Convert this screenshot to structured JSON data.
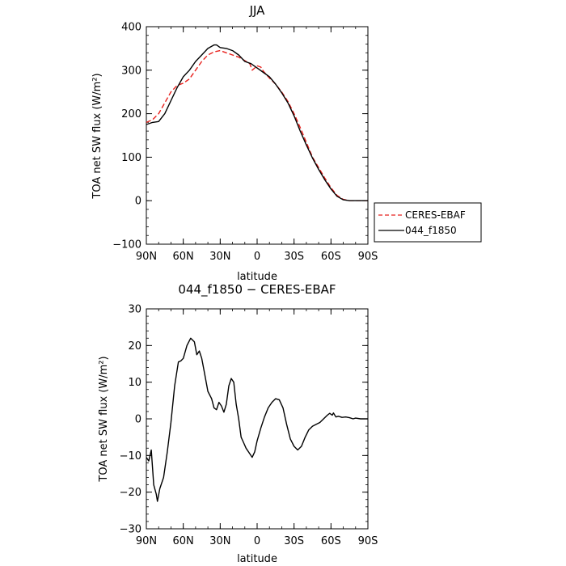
{
  "chart_data": [
    {
      "type": "line",
      "title": "JJA",
      "xlabel": "latitude",
      "ylabel": "TOA net SW flux (W/m²)",
      "xlim": [
        90,
        -90
      ],
      "ylim": [
        -100,
        400
      ],
      "x_ticks": [
        90,
        60,
        30,
        0,
        -30,
        -60,
        -90
      ],
      "x_tick_labels": [
        "90N",
        "60N",
        "30N",
        "0",
        "30S",
        "60S",
        "90S"
      ],
      "y_ticks": [
        -100,
        0,
        100,
        200,
        300,
        400
      ],
      "y_tick_labels": [
        "−100",
        "0",
        "100",
        "200",
        "300",
        "400"
      ],
      "legend": {
        "position": "right",
        "entries": [
          "CERES-EBAF",
          "044_f1850"
        ]
      },
      "series": [
        {
          "name": "CERES-EBAF",
          "color": "#e8211d",
          "dash": "dashed",
          "points": [
            [
              90,
              180
            ],
            [
              85,
              186
            ],
            [
              80,
              200
            ],
            [
              75,
              225
            ],
            [
              70,
              250
            ],
            [
              65,
              265
            ],
            [
              60,
              270
            ],
            [
              55,
              280
            ],
            [
              50,
              300
            ],
            [
              45,
              320
            ],
            [
              40,
              335
            ],
            [
              35,
              342
            ],
            [
              30,
              345
            ],
            [
              25,
              340
            ],
            [
              20,
              335
            ],
            [
              15,
              330
            ],
            [
              10,
              322
            ],
            [
              6,
              315
            ],
            [
              4,
              300
            ],
            [
              2,
              305
            ],
            [
              0,
              310
            ],
            [
              -3,
              307
            ],
            [
              -5,
              298
            ],
            [
              -10,
              282
            ],
            [
              -15,
              268
            ],
            [
              -20,
              250
            ],
            [
              -25,
              228
            ],
            [
              -30,
              200
            ],
            [
              -35,
              168
            ],
            [
              -40,
              134
            ],
            [
              -45,
              100
            ],
            [
              -50,
              76
            ],
            [
              -55,
              52
            ],
            [
              -60,
              30
            ],
            [
              -65,
              12
            ],
            [
              -70,
              3
            ],
            [
              -75,
              0
            ],
            [
              -80,
              0
            ],
            [
              -85,
              0
            ],
            [
              -90,
              0
            ]
          ]
        },
        {
          "name": "044_f1850",
          "color": "#000000",
          "dash": "solid",
          "points": [
            [
              90,
              175
            ],
            [
              85,
              180
            ],
            [
              80,
              182
            ],
            [
              75,
              200
            ],
            [
              70,
              230
            ],
            [
              65,
              260
            ],
            [
              60,
              285
            ],
            [
              55,
              300
            ],
            [
              50,
              320
            ],
            [
              45,
              335
            ],
            [
              40,
              350
            ],
            [
              35,
              358
            ],
            [
              33,
              358
            ],
            [
              30,
              352
            ],
            [
              25,
              350
            ],
            [
              20,
              345
            ],
            [
              15,
              335
            ],
            [
              10,
              320
            ],
            [
              5,
              315
            ],
            [
              0,
              305
            ],
            [
              -5,
              295
            ],
            [
              -10,
              285
            ],
            [
              -15,
              268
            ],
            [
              -20,
              248
            ],
            [
              -25,
              225
            ],
            [
              -30,
              195
            ],
            [
              -35,
              160
            ],
            [
              -40,
              128
            ],
            [
              -45,
              98
            ],
            [
              -50,
              72
            ],
            [
              -55,
              48
            ],
            [
              -60,
              27
            ],
            [
              -65,
              10
            ],
            [
              -70,
              2
            ],
            [
              -75,
              0
            ],
            [
              -80,
              0
            ],
            [
              -85,
              0
            ],
            [
              -90,
              0
            ]
          ]
        }
      ]
    },
    {
      "type": "line",
      "title": "044_f1850 − CERES-EBAF",
      "xlabel": "latitude",
      "ylabel": "TOA net SW flux (W/m²)",
      "xlim": [
        90,
        -90
      ],
      "ylim": [
        -30,
        30
      ],
      "x_ticks": [
        90,
        60,
        30,
        0,
        -30,
        -60,
        -90
      ],
      "x_tick_labels": [
        "90N",
        "60N",
        "30N",
        "0",
        "30S",
        "60S",
        "90S"
      ],
      "y_ticks": [
        -30,
        -20,
        -10,
        0,
        10,
        20,
        30
      ],
      "y_tick_labels": [
        "−30",
        "−20",
        "−10",
        "0",
        "10",
        "20",
        "30"
      ],
      "series": [
        {
          "color": "#000000",
          "dash": "solid",
          "points": [
            [
              90,
              -10.5
            ],
            [
              88,
              -11.5
            ],
            [
              86,
              -8.5
            ],
            [
              84,
              -18
            ],
            [
              82,
              -20.5
            ],
            [
              81,
              -22.5
            ],
            [
              79,
              -19
            ],
            [
              76,
              -16
            ],
            [
              73,
              -9
            ],
            [
              70,
              -1
            ],
            [
              67,
              9
            ],
            [
              64,
              15.5
            ],
            [
              62,
              15.8
            ],
            [
              60,
              16.5
            ],
            [
              57,
              20
            ],
            [
              54,
              22
            ],
            [
              51,
              21
            ],
            [
              49,
              17.5
            ],
            [
              47,
              18.5
            ],
            [
              45,
              16.5
            ],
            [
              43,
              13
            ],
            [
              40,
              7.5
            ],
            [
              37,
              5.5
            ],
            [
              35,
              3
            ],
            [
              33,
              2.5
            ],
            [
              31,
              4.5
            ],
            [
              29,
              3.5
            ],
            [
              27,
              1.8
            ],
            [
              25,
              4
            ],
            [
              23,
              9
            ],
            [
              21,
              11
            ],
            [
              19,
              10
            ],
            [
              17,
              4
            ],
            [
              15,
              0
            ],
            [
              13,
              -5
            ],
            [
              11,
              -6.5
            ],
            [
              9,
              -8
            ],
            [
              6,
              -9.5
            ],
            [
              4,
              -10.5
            ],
            [
              2,
              -9
            ],
            [
              0,
              -6
            ],
            [
              -3,
              -2.5
            ],
            [
              -6,
              0.5
            ],
            [
              -9,
              3
            ],
            [
              -12,
              4.5
            ],
            [
              -15,
              5.5
            ],
            [
              -18,
              5.2
            ],
            [
              -21,
              3
            ],
            [
              -24,
              -1.5
            ],
            [
              -27,
              -5.5
            ],
            [
              -30,
              -7.5
            ],
            [
              -33,
              -8.5
            ],
            [
              -36,
              -7.5
            ],
            [
              -39,
              -5
            ],
            [
              -42,
              -3
            ],
            [
              -45,
              -2
            ],
            [
              -48,
              -1.5
            ],
            [
              -51,
              -1
            ],
            [
              -54,
              0
            ],
            [
              -57,
              1
            ],
            [
              -59,
              1.5
            ],
            [
              -61,
              1
            ],
            [
              -62,
              1.6
            ],
            [
              -64,
              0.5
            ],
            [
              -66,
              0.7
            ],
            [
              -69,
              0.4
            ],
            [
              -72,
              0.5
            ],
            [
              -75,
              0.3
            ],
            [
              -78,
              0
            ],
            [
              -80,
              0.2
            ],
            [
              -84,
              0
            ],
            [
              -90,
              0
            ]
          ]
        }
      ]
    }
  ]
}
